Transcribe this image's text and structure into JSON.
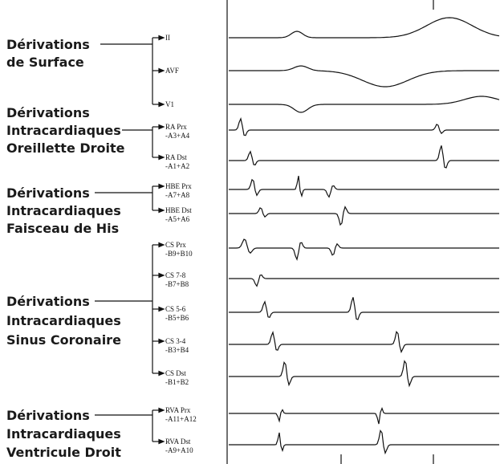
{
  "groups": [
    {
      "label": [
        "Dérivations",
        "de Surface"
      ],
      "channels": [
        [
          "II"
        ],
        [
          "AVF"
        ],
        [
          "V1"
        ]
      ]
    },
    {
      "label": [
        "Dérivations",
        "Intracardiaques",
        "Oreillette Droite"
      ],
      "channels": [
        [
          "RA Prx",
          "-A3+A4"
        ],
        [
          "RA Dst",
          "-A1+A2"
        ]
      ]
    },
    {
      "label": [
        "Dérivations",
        "Intracardiaques",
        "Faisceau de His"
      ],
      "channels": [
        [
          "HBE Prx",
          "-A7+A8"
        ],
        [
          "HBE Dst",
          "-A5+A6"
        ]
      ]
    },
    {
      "label": [
        "Dérivations",
        "Intracardiaques",
        "Sinus Coronaire"
      ],
      "channels": [
        [
          "CS Prx",
          "-B9+B10"
        ],
        [
          "CS 7-8",
          "-B7+B8"
        ],
        [
          "CS 5-6",
          "-B5+B6"
        ],
        [
          "CS 3-4",
          "-B3+B4"
        ],
        [
          "CS Dst",
          "-B1+B2"
        ]
      ]
    },
    {
      "label": [
        "Dérivations",
        "Intracardiaques",
        "Ventricule Droit"
      ],
      "channels": [
        [
          "RVA Prx",
          "-A11+A12"
        ],
        [
          "RVA Dst",
          "-A9+A10"
        ]
      ]
    }
  ]
}
